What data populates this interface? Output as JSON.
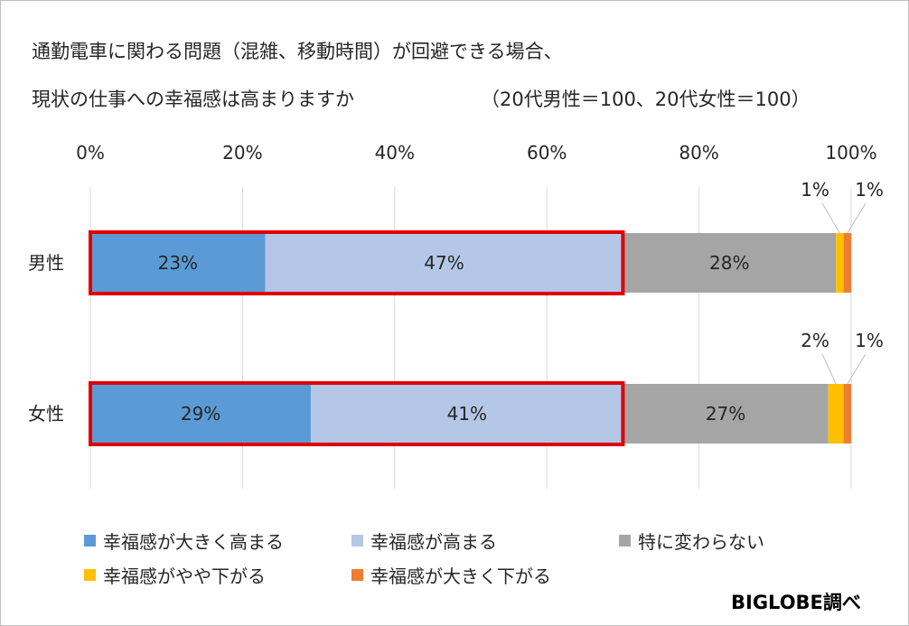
{
  "title_line1": "通勤電車に関わる問題（混雑、移動時間）が回避できる場合、",
  "title_line2": "現状の仕事への幸福感は高まりますか",
  "title_note": "（20代男性＝100、20代女性＝100）",
  "credit": "BIGLOBE調べ",
  "chart_data": {
    "type": "bar",
    "orientation": "horizontal-stacked-100",
    "x_ticks": [
      "0%",
      "20%",
      "40%",
      "60%",
      "80%",
      "100%"
    ],
    "xlim": [
      0,
      100
    ],
    "grid": "vertical",
    "legend_position": "bottom",
    "categories": [
      "男性",
      "女性"
    ],
    "series": [
      {
        "name": "幸福感が大きく高まる",
        "color": "#5b9bd5",
        "values": [
          23,
          29
        ],
        "labels": [
          "23%",
          "29%"
        ]
      },
      {
        "name": "幸福感が高まる",
        "color": "#b4c7e7",
        "values": [
          47,
          41
        ],
        "labels": [
          "47%",
          "41%"
        ]
      },
      {
        "name": "特に変わらない",
        "color": "#a5a5a5",
        "values": [
          28,
          27
        ],
        "labels": [
          "28%",
          "27%"
        ]
      },
      {
        "name": "幸福感がやや下がる",
        "color": "#ffc000",
        "values": [
          1,
          2
        ],
        "labels": [
          "1%",
          "2%"
        ]
      },
      {
        "name": "幸福感が大きく下がる",
        "color": "#ed7d31",
        "values": [
          1,
          1
        ],
        "labels": [
          "1%",
          "1%"
        ]
      }
    ],
    "highlight_color": "#e00000",
    "highlight_series_count": 2
  }
}
